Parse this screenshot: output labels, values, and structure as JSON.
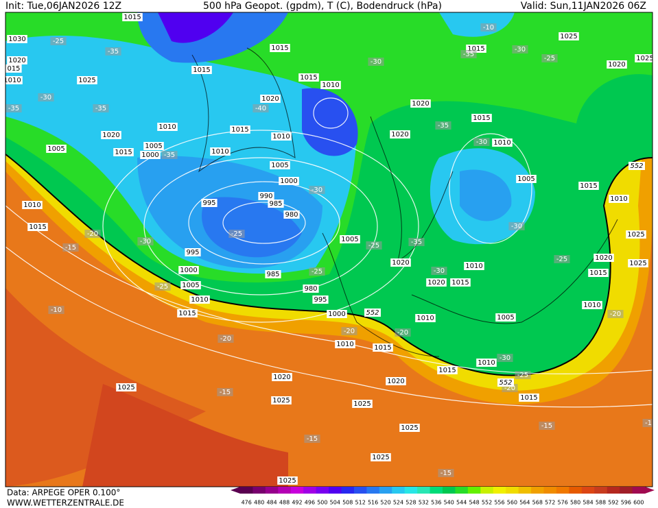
{
  "header": {
    "init": "Init: Tue,06JAN2026 12Z",
    "title": "500 hPa Geopot. (gpdm), T (C), Bodendruck (hPa)",
    "valid": "Valid: Sun,11JAN2026 06Z"
  },
  "footer": {
    "data": "Data: ARPEGE OPER 0.100°",
    "site": "WWW.WETTERZENTRALE.DE"
  },
  "colorbar": {
    "ticks": [
      476,
      480,
      484,
      488,
      492,
      496,
      500,
      504,
      508,
      512,
      516,
      520,
      524,
      528,
      532,
      536,
      540,
      544,
      548,
      552,
      556,
      560,
      564,
      568,
      572,
      576,
      580,
      584,
      588,
      592,
      596,
      600
    ],
    "colors": [
      "#5a0050",
      "#78006e",
      "#96008c",
      "#b400b4",
      "#c800dc",
      "#a000e6",
      "#7800f0",
      "#5000f0",
      "#2828f0",
      "#2850f0",
      "#2878f0",
      "#28a0f0",
      "#28c8f0",
      "#28e6e6",
      "#28e6b4",
      "#00dc78",
      "#00c850",
      "#28dc28",
      "#64f000",
      "#c8f000",
      "#f0f000",
      "#f0dc00",
      "#f0be00",
      "#f0a000",
      "#f08c00",
      "#f07800",
      "#e65a00",
      "#dc4614",
      "#c83c1e",
      "#b4281e",
      "#a01e28",
      "#a00a50"
    ]
  },
  "map": {
    "pressure_labels": [
      "1015",
      "1030",
      "1020",
      "015",
      "1010",
      "1025",
      "1015",
      "1015",
      "1015",
      "1010",
      "1020",
      "1010",
      "1015",
      "1010",
      "1020",
      "1005",
      "1015",
      "1005",
      "1000",
      "1010",
      "1005",
      "1000",
      "995",
      "990",
      "985",
      "980",
      "1010",
      "1015",
      "1005",
      "995",
      "1000",
      "985",
      "1005",
      "980",
      "1010",
      "995",
      "1015",
      "1000",
      "1010",
      "1015",
      "1020",
      "1020",
      "1025",
      "1025",
      "1025",
      "1025",
      "1025",
      "1025",
      "1020",
      "1020",
      "1015",
      "1010",
      "1005",
      "1015",
      "1010",
      "1025",
      "1015",
      "1020",
      "1025",
      "1020",
      "1010",
      "1020",
      "1015",
      "1010",
      "1005",
      "1010",
      "1015",
      "1020",
      "1025",
      "1025",
      "1010",
      "1015",
      "1015"
    ],
    "temperature_labels": [
      "-25",
      "-35",
      "-30",
      "-30",
      "-25",
      "-10",
      "-35",
      "-30",
      "-35",
      "-35",
      "-40",
      "-35",
      "-30",
      "-35",
      "-30",
      "-25",
      "-20",
      "-30",
      "-15",
      "-25",
      "-35",
      "-30",
      "-25",
      "-30",
      "-25",
      "-25",
      "-10",
      "-20",
      "-20",
      "-20",
      "-20",
      "-30",
      "-25",
      "-20",
      "-15",
      "-15",
      "-15",
      "-15",
      "-1"
    ],
    "height_labels": [
      "552",
      "552",
      "552"
    ]
  }
}
